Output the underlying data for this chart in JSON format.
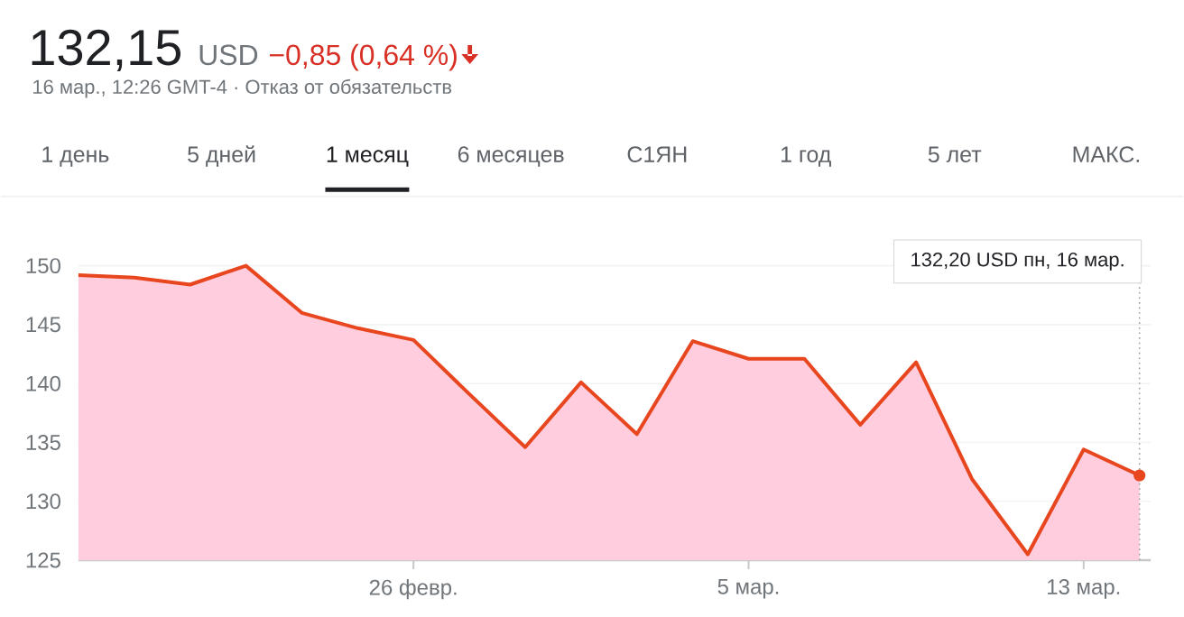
{
  "chart_data": {
    "type": "area",
    "title": "132,15",
    "subtitle": "16 мар., 12:26 GMT-4 · Отказ от обязательств",
    "annotations": [
      "USD",
      "−0,85 (0,64 %)",
      "1 день",
      "5 дней",
      "1 месяц",
      "6 месяцев",
      "С1ЯН",
      "1 год",
      "5 лет",
      "МАКС.",
      "132,20 USD  пн, 16 мар."
    ],
    "categories": [
      null,
      null,
      null,
      null,
      null,
      null,
      "26 февр.",
      null,
      null,
      null,
      null,
      null,
      "5 мар.",
      null,
      null,
      null,
      null,
      null,
      "13 мар.",
      null
    ],
    "ylim": [
      125,
      151
    ],
    "yticks": [
      125,
      130,
      135,
      140,
      145,
      150
    ],
    "grid": "y",
    "series": [
      {
        "color": "#e8461e",
        "values": [
          149.2,
          149.0,
          148.4,
          150.0,
          146.0,
          144.7,
          143.7,
          139.1,
          134.6,
          140.1,
          135.7,
          143.6,
          142.1,
          142.1,
          136.5,
          141.8,
          131.9,
          125.5,
          134.4,
          132.2
        ]
      }
    ]
  }
}
